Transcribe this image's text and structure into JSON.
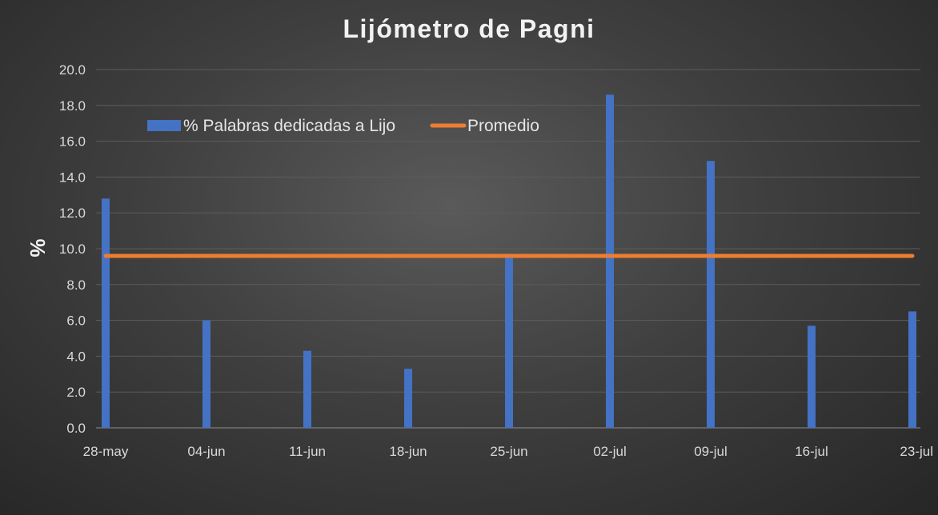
{
  "chart_data": {
    "type": "bar",
    "title": "Lijómetro de Pagni",
    "xlabel": "",
    "ylabel": "%",
    "ylim": [
      0,
      20
    ],
    "yticks": [
      "0.0",
      "2.0",
      "4.0",
      "6.0",
      "8.0",
      "10.0",
      "12.0",
      "14.0",
      "16.0",
      "18.0",
      "20.0"
    ],
    "grid": true,
    "legend_position": "top-left",
    "categories": [
      "28-may",
      "04-jun",
      "11-jun",
      "18-jun",
      "25-jun",
      "02-jul",
      "09-jul",
      "16-jul",
      "23-jul"
    ],
    "series": [
      {
        "name": "% Palabras dedicadas a Lijo",
        "kind": "bar",
        "color": "#4472c4",
        "values": [
          12.8,
          6.0,
          4.3,
          3.3,
          9.5,
          18.6,
          14.9,
          5.7,
          6.5
        ]
      },
      {
        "name": "Promedio",
        "kind": "line",
        "color": "#ed7d31",
        "values": [
          9.6,
          9.6,
          9.6,
          9.6,
          9.6,
          9.6,
          9.6,
          9.6,
          9.6
        ]
      }
    ]
  }
}
